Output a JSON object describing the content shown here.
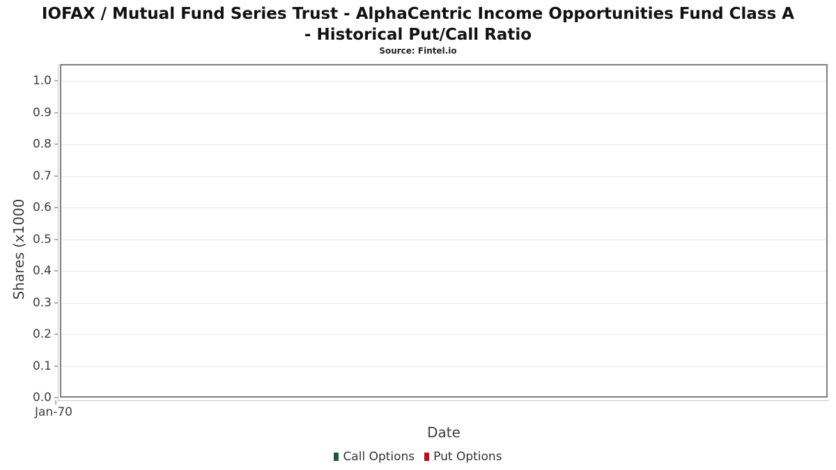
{
  "header": {
    "title_line1": "IOFAX / Mutual Fund Series Trust - AlphaCentric Income Opportunities Fund Class A",
    "title_line2": "- Historical Put/Call Ratio",
    "subtitle": "Source: Fintel.io"
  },
  "axes": {
    "y_label": "Shares (x1000",
    "x_label": "Date",
    "y_tick_labels": [
      "1.0",
      "0.9",
      "0.8",
      "0.7",
      "0.6",
      "0.5",
      "0.4",
      "0.3",
      "0.2",
      "0.1",
      "0.0"
    ],
    "x_tick_labels": [
      "Jan-70"
    ]
  },
  "legend": [
    {
      "label": "Call Options",
      "color": "#1d5c33"
    },
    {
      "label": "Put Options",
      "color": "#b51218"
    }
  ],
  "colors": {
    "plot_border": "#7d7d7d",
    "axis_line": "#c6c6c6",
    "tick_mark": "#b0b0b0",
    "gridline": "#e8e8e8",
    "call_green": "#1d5c33",
    "put_red": "#b51218"
  },
  "chart_data": {
    "type": "line",
    "title": "IOFAX / Mutual Fund Series Trust - AlphaCentric Income Opportunities Fund Class A - Historical Put/Call Ratio",
    "subtitle": "Source: Fintel.io",
    "xlabel": "Date",
    "ylabel": "Shares (x1000",
    "ylim": [
      0.0,
      1.0
    ],
    "y_ticks": [
      0.0,
      0.1,
      0.2,
      0.3,
      0.4,
      0.5,
      0.6,
      0.7,
      0.8,
      0.9,
      1.0
    ],
    "x_tick_labels": [
      "Jan-70"
    ],
    "grid": "horizontal",
    "legend_position": "bottom-center",
    "series": [
      {
        "name": "Call Options",
        "color": "#1d5c33",
        "x": [],
        "values": []
      },
      {
        "name": "Put Options",
        "color": "#b51218",
        "x": [],
        "values": []
      }
    ]
  }
}
